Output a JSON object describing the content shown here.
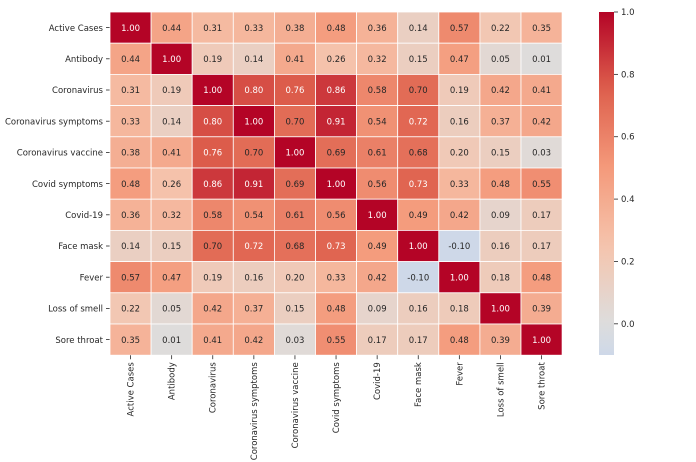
{
  "chart_data": {
    "type": "heatmap",
    "title": "",
    "xlabel": "",
    "ylabel": "",
    "labels": [
      "Active Cases",
      "Antibody",
      "Coronavirus",
      "Coronavirus symptoms",
      "Coronavirus vaccine",
      "Covid symptoms",
      "Covid-19",
      "Face mask",
      "Fever",
      "Loss of smell",
      "Sore throat"
    ],
    "matrix": [
      [
        1.0,
        0.44,
        0.31,
        0.33,
        0.38,
        0.48,
        0.36,
        0.14,
        0.57,
        0.22,
        0.35
      ],
      [
        0.44,
        1.0,
        0.19,
        0.14,
        0.41,
        0.26,
        0.32,
        0.15,
        0.47,
        0.05,
        0.01
      ],
      [
        0.31,
        0.19,
        1.0,
        0.8,
        0.76,
        0.86,
        0.58,
        0.7,
        0.19,
        0.42,
        0.41
      ],
      [
        0.33,
        0.14,
        0.8,
        1.0,
        0.7,
        0.91,
        0.54,
        0.72,
        0.16,
        0.37,
        0.42
      ],
      [
        0.38,
        0.41,
        0.76,
        0.7,
        1.0,
        0.69,
        0.61,
        0.68,
        0.2,
        0.15,
        0.03
      ],
      [
        0.48,
        0.26,
        0.86,
        0.91,
        0.69,
        1.0,
        0.56,
        0.73,
        0.33,
        0.48,
        0.55
      ],
      [
        0.36,
        0.32,
        0.58,
        0.54,
        0.61,
        0.56,
        1.0,
        0.49,
        0.42,
        0.09,
        0.17
      ],
      [
        0.14,
        0.15,
        0.7,
        0.72,
        0.68,
        0.73,
        0.49,
        1.0,
        -0.1,
        0.16,
        0.17
      ],
      [
        0.57,
        0.47,
        0.19,
        0.16,
        0.2,
        0.33,
        0.42,
        -0.1,
        1.0,
        0.18,
        0.48
      ],
      [
        0.22,
        0.05,
        0.42,
        0.37,
        0.15,
        0.48,
        0.09,
        0.16,
        0.18,
        1.0,
        0.39
      ],
      [
        0.35,
        0.01,
        0.41,
        0.42,
        0.03,
        0.55,
        0.17,
        0.17,
        0.48,
        0.39,
        1.0
      ]
    ],
    "annotation_format": "2 decimals",
    "colormap": "coolwarm",
    "vmin": -0.1,
    "vmax": 1.0,
    "colorbar_ticks": [
      "0.0",
      "0.2",
      "0.4",
      "0.6",
      "0.8",
      "1.0"
    ],
    "colorbar_tick_values": [
      0.0,
      0.2,
      0.4,
      0.6,
      0.8,
      1.0
    ]
  }
}
